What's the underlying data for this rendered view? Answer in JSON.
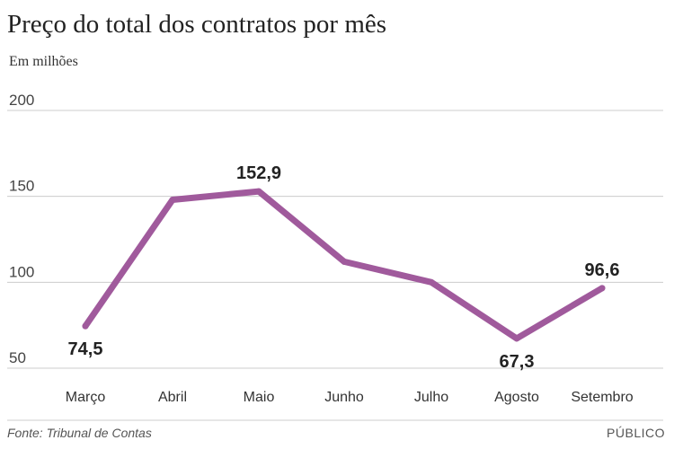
{
  "chart_data": {
    "type": "line",
    "title": "Preço do total dos contratos por mês",
    "subtitle": "Em milhões",
    "categories": [
      "Março",
      "Abril",
      "Maio",
      "Junho",
      "Julho",
      "Agosto",
      "Setembro"
    ],
    "series": [
      {
        "values": [
          74.5,
          148,
          152.9,
          112,
          100,
          67.3,
          96.6
        ]
      }
    ],
    "data_labels": [
      {
        "index": 0,
        "text": "74,5",
        "position": "below"
      },
      {
        "index": 2,
        "text": "152,9",
        "position": "above"
      },
      {
        "index": 5,
        "text": "67,3",
        "position": "below"
      },
      {
        "index": 6,
        "text": "96,6",
        "position": "above"
      }
    ],
    "yticks": [
      {
        "value": 200,
        "label": "200"
      },
      {
        "value": 150,
        "label": "150"
      },
      {
        "value": 100,
        "label": "100"
      },
      {
        "value": 50,
        "label": "50"
      }
    ],
    "ylim": [
      50,
      200
    ],
    "grid": true,
    "line_color": "#a05a9c",
    "grid_color": "#cccccc"
  },
  "footer": {
    "source": "Fonte: Tribunal de Contas",
    "brand": "PÚBLICO"
  }
}
